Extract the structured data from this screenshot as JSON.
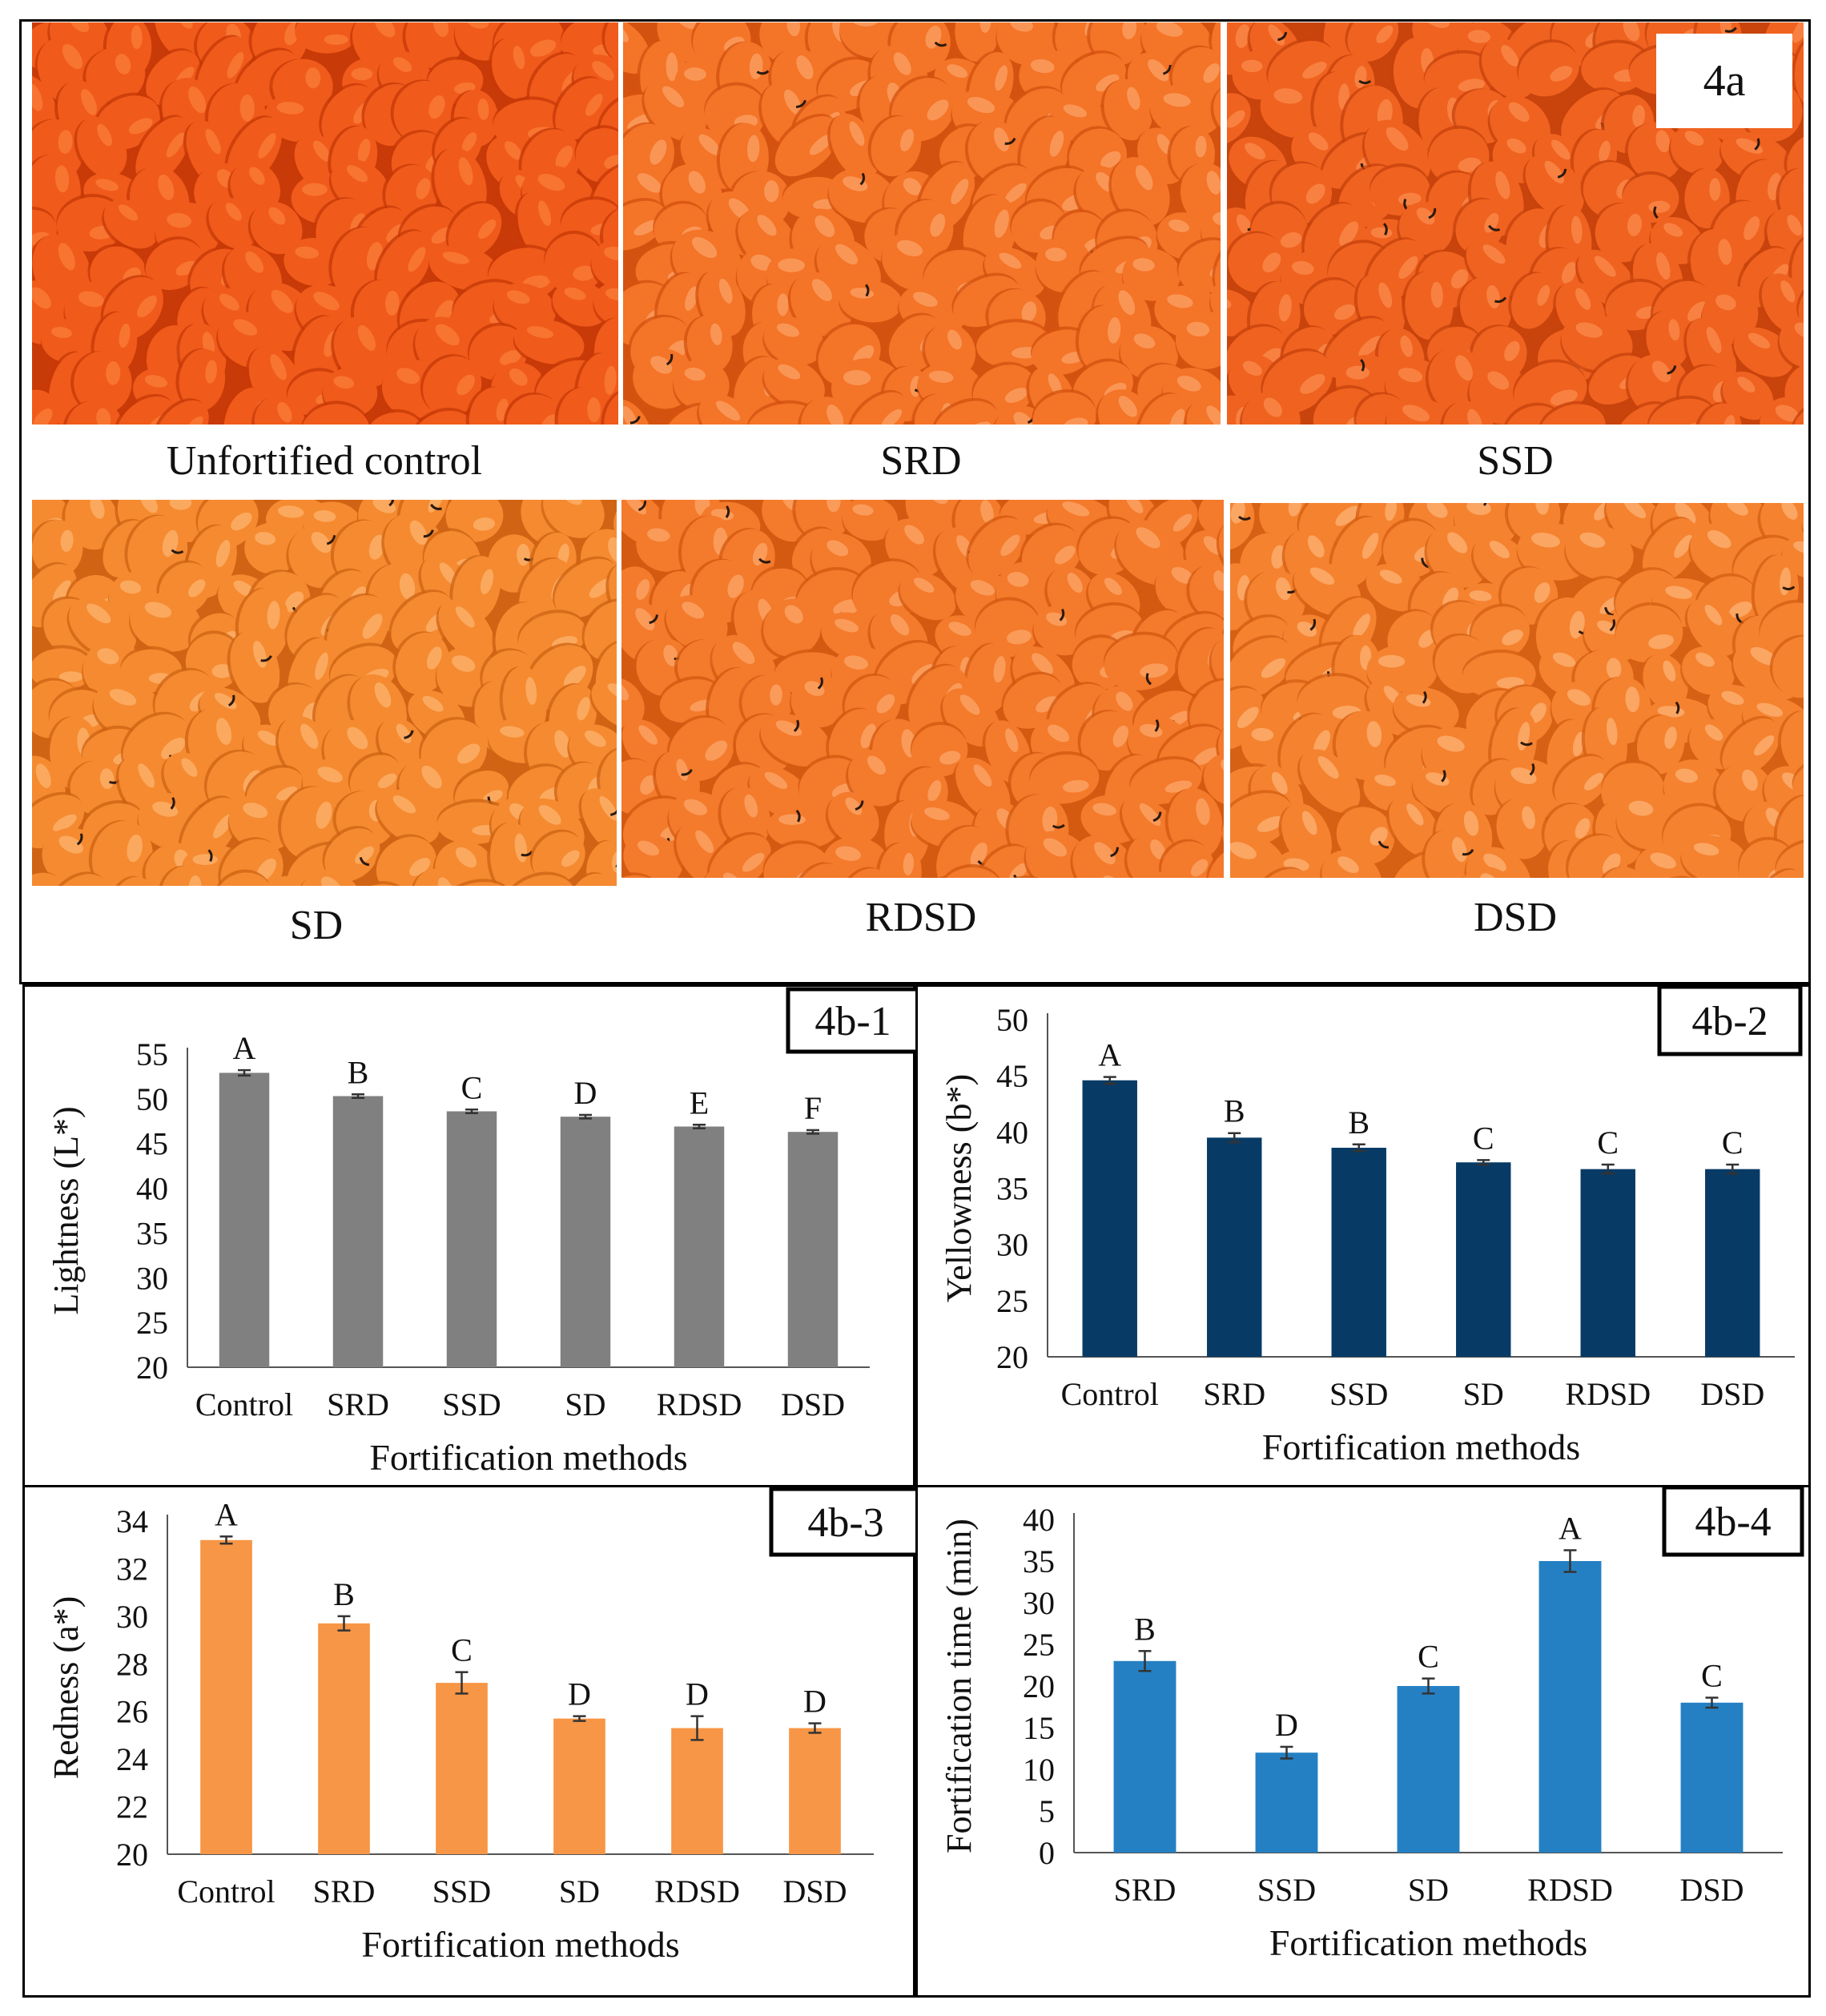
{
  "figure_label": "4a",
  "photos": [
    {
      "label": "Unfortified control",
      "tone": "#f05a1a",
      "shade": "#c83a08",
      "hi": "#ff8a45"
    },
    {
      "label": "SRD",
      "tone": "#f47428",
      "shade": "#d4520f",
      "hi": "#ffb27a"
    },
    {
      "label": "SSD",
      "tone": "#f0621f",
      "shade": "#c8440c",
      "hi": "#ff9a5c"
    },
    {
      "label": "SD",
      "tone": "#f58a30",
      "shade": "#d06414",
      "hi": "#ffc285"
    },
    {
      "label": "RDSD",
      "tone": "#f47a2c",
      "shade": "#d45a12",
      "hi": "#ffb680"
    },
    {
      "label": "DSD",
      "tone": "#f5822f",
      "shade": "#d66014",
      "hi": "#ffc48e"
    }
  ],
  "chart_data": [
    {
      "id": "4b-1",
      "type": "bar",
      "title": "4b-1",
      "categories": [
        "Control",
        "SRD",
        "SSD",
        "SD",
        "RDSD",
        "DSD"
      ],
      "values": [
        52.9,
        50.3,
        48.6,
        48.0,
        46.9,
        46.3
      ],
      "errors": [
        0.3,
        0.2,
        0.2,
        0.2,
        0.2,
        0.2
      ],
      "letters": [
        "A",
        "B",
        "C",
        "D",
        "E",
        "F"
      ],
      "xlabel": "Fortification methods",
      "ylabel": "Lightness (L*)",
      "ylim": [
        20,
        55
      ],
      "yticks": [
        20,
        25,
        30,
        35,
        40,
        45,
        50,
        55
      ],
      "color": "#808080"
    },
    {
      "id": "4b-2",
      "type": "bar",
      "title": "4b-2",
      "categories": [
        "Control",
        "SRD",
        "SSD",
        "SD",
        "RDSD",
        "DSD"
      ],
      "values": [
        44.6,
        39.5,
        38.6,
        37.3,
        36.7,
        36.7
      ],
      "errors": [
        0.3,
        0.4,
        0.3,
        0.2,
        0.4,
        0.4
      ],
      "letters": [
        "A",
        "B",
        "B",
        "C",
        "C",
        "C"
      ],
      "xlabel": "Fortification methods",
      "ylabel": "Yellowness (b*)",
      "ylim": [
        20,
        50
      ],
      "yticks": [
        20,
        25,
        30,
        35,
        40,
        45,
        50
      ],
      "color": "#073b66"
    },
    {
      "id": "4b-3",
      "type": "bar",
      "title": "4b-3",
      "categories": [
        "Control",
        "SRD",
        "SSD",
        "SD",
        "RDSD",
        "DSD"
      ],
      "values": [
        33.2,
        29.7,
        27.2,
        25.7,
        25.3,
        25.3
      ],
      "errors": [
        0.15,
        0.3,
        0.45,
        0.1,
        0.5,
        0.2
      ],
      "letters": [
        "A",
        "B",
        "C",
        "D",
        "D",
        "D"
      ],
      "xlabel": "Fortification methods",
      "ylabel": "Redness (a*)",
      "ylim": [
        20,
        34
      ],
      "yticks": [
        20,
        22,
        24,
        26,
        28,
        30,
        32,
        34
      ],
      "color": "#f79646"
    },
    {
      "id": "4b-4",
      "type": "bar",
      "title": "4b-4",
      "categories": [
        "SRD",
        "SSD",
        "SD",
        "RDSD",
        "DSD"
      ],
      "values": [
        23.0,
        12.0,
        20.0,
        35.0,
        18.0
      ],
      "errors": [
        1.2,
        0.7,
        0.9,
        1.3,
        0.6
      ],
      "letters": [
        "B",
        "D",
        "C",
        "A",
        "C"
      ],
      "xlabel": "Fortification methods",
      "ylabel": "Fortification time (min)",
      "ylim": [
        0,
        40
      ],
      "yticks": [
        0,
        5,
        10,
        15,
        20,
        25,
        30,
        35,
        40
      ],
      "color": "#2580c3"
    }
  ]
}
